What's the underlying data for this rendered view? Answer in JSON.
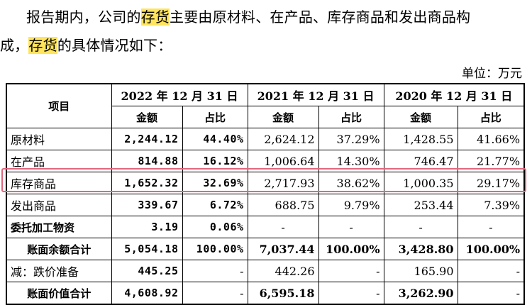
{
  "paragraph": {
    "line1_pre": "报告期内，公司的",
    "line1_hl": "存货",
    "line1_post": "主要由原材料、在产品、库存商品和发出商品构",
    "line2_pre": "成，",
    "line2_hl": "存货",
    "line2_post": "的具体情况如下："
  },
  "unit_label": "单位：万元",
  "table": {
    "col_item": "项目",
    "years": [
      "2022 年 12 月 31 日",
      "2021 年 12 月 31 日",
      "2020 年 12 月 31 日"
    ],
    "sub_amount": "金额",
    "sub_ratio": "占比",
    "rows": [
      {
        "name": "原材料",
        "v2022": "2,244.12",
        "r2022": "44.40%",
        "v2021": "2,624.12",
        "r2021": "37.29%",
        "v2020": "1,428.55",
        "r2020": "41.66%"
      },
      {
        "name": "在产品",
        "v2022": "814.88",
        "r2022": "16.12%",
        "v2021": "1,006.64",
        "r2021": "14.30%",
        "v2020": "746.47",
        "r2020": "21.77%"
      },
      {
        "name": "库存商品",
        "v2022": "1,652.32",
        "r2022": "32.69%",
        "v2021": "2,717.93",
        "r2021": "38.62%",
        "v2020": "1,000.35",
        "r2020": "29.17%"
      },
      {
        "name": "发出商品",
        "v2022": "339.67",
        "r2022": "6.72%",
        "v2021": "688.75",
        "r2021": "9.79%",
        "v2020": "253.44",
        "r2020": "7.39%"
      },
      {
        "name": "委托加工物资",
        "v2022": "3.19",
        "r2022": "0.06%",
        "v2021": "-",
        "r2021": "-",
        "v2020": "-",
        "r2020": "-"
      },
      {
        "name": "账面余额合计",
        "v2022": "5,054.18",
        "r2022": "100.00%",
        "v2021": "7,037.44",
        "r2021": "100.00%",
        "v2020": "3,428.80",
        "r2020": "100.00%"
      },
      {
        "name": "减：跌价准备",
        "v2022": "445.25",
        "r2022": "-",
        "v2021": "442.26",
        "r2021": "-",
        "v2020": "165.90",
        "r2020": "-"
      },
      {
        "name": "账面价值合计",
        "v2022": "4,608.92",
        "r2022": "-",
        "v2021": "6,595.18",
        "r2021": "-",
        "v2020": "3,262.90",
        "r2020": "-"
      }
    ]
  },
  "colors": {
    "highlight": "#ffe45c",
    "row_frame": "#e2667e"
  }
}
